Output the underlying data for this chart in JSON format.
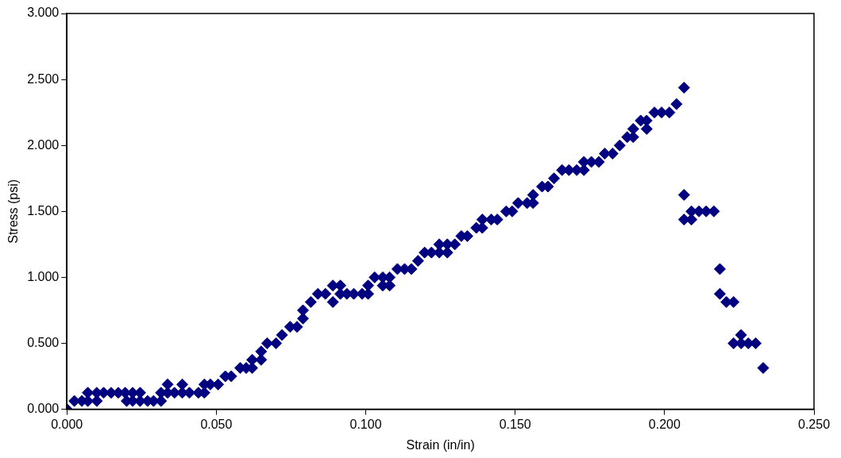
{
  "chart_data": {
    "type": "scatter",
    "xlabel": "Strain (in/in)",
    "ylabel": "Stress (psi)",
    "marker": "diamond",
    "grid": false,
    "legend": false,
    "xlim": [
      0,
      0.25
    ],
    "xticks": [
      {
        "value": 0,
        "label": "0.000"
      },
      {
        "value": 0.05,
        "label": "0.050"
      },
      {
        "value": 0.1,
        "label": "0.100"
      },
      {
        "value": 0.15,
        "label": "0.150"
      },
      {
        "value": 0.2,
        "label": "0.200"
      },
      {
        "value": 0.25,
        "label": "0.250"
      }
    ],
    "ylim": [
      0,
      3
    ],
    "yticks": [
      {
        "value": 0,
        "label": "0.000"
      },
      {
        "value": 0.5,
        "label": "0.500"
      },
      {
        "value": 1,
        "label": "1.000"
      },
      {
        "value": 1.5,
        "label": "1.500"
      },
      {
        "value": 2,
        "label": "2.000"
      },
      {
        "value": 2.5,
        "label": "2.500"
      },
      {
        "value": 3,
        "label": "3.000"
      }
    ],
    "series": [
      {
        "color": "#000080",
        "x": [
          0,
          0.0025,
          0.005,
          0.007,
          0.007,
          0.01,
          0.01,
          0.0123,
          0.0148,
          0.0172,
          0.0195,
          0.02,
          0.022,
          0.022,
          0.0245,
          0.0245,
          0.027,
          0.029,
          0.0315,
          0.0315,
          0.0337,
          0.0337,
          0.036,
          0.0386,
          0.0386,
          0.041,
          0.044,
          0.046,
          0.046,
          0.048,
          0.0506,
          0.053,
          0.055,
          0.058,
          0.06,
          0.062,
          0.062,
          0.065,
          0.065,
          0.067,
          0.07,
          0.072,
          0.0747,
          0.077,
          0.079,
          0.079,
          0.0816,
          0.084,
          0.0865,
          0.089,
          0.089,
          0.0915,
          0.0915,
          0.0937,
          0.096,
          0.0988,
          0.1008,
          0.1008,
          0.103,
          0.1057,
          0.1057,
          0.108,
          0.108,
          0.1106,
          0.113,
          0.1153,
          0.1175,
          0.1197,
          0.122,
          0.1246,
          0.1246,
          0.1273,
          0.1273,
          0.1298,
          0.132,
          0.134,
          0.137,
          0.139,
          0.139,
          0.142,
          0.144,
          0.147,
          0.149,
          0.151,
          0.154,
          0.156,
          0.156,
          0.159,
          0.161,
          0.163,
          0.1657,
          0.168,
          0.1706,
          0.173,
          0.173,
          0.1755,
          0.178,
          0.18,
          0.1826,
          0.185,
          0.1875,
          0.1895,
          0.1895,
          0.192,
          0.194,
          0.194,
          0.1966,
          0.199,
          0.2016,
          0.204,
          0.2065,
          0.2065,
          0.2065,
          0.209,
          0.209,
          0.2115,
          0.2139,
          0.2165,
          0.2185,
          0.2185,
          0.2207,
          0.2231,
          0.2231,
          0.2256,
          0.2256,
          0.228,
          0.2305,
          0.233
        ],
        "values": [
          0,
          0.063,
          0.063,
          0.125,
          0.063,
          0.125,
          0.063,
          0.125,
          0.125,
          0.125,
          0.125,
          0.063,
          0.125,
          0.063,
          0.125,
          0.063,
          0.063,
          0.063,
          0.063,
          0.125,
          0.188,
          0.125,
          0.125,
          0.188,
          0.125,
          0.125,
          0.125,
          0.188,
          0.125,
          0.188,
          0.188,
          0.25,
          0.25,
          0.313,
          0.313,
          0.313,
          0.375,
          0.438,
          0.375,
          0.5,
          0.5,
          0.563,
          0.625,
          0.625,
          0.688,
          0.75,
          0.813,
          0.875,
          0.875,
          0.938,
          0.813,
          0.938,
          0.875,
          0.875,
          0.875,
          0.875,
          0.875,
          0.938,
          1,
          1,
          0.938,
          0.938,
          1,
          1.063,
          1.063,
          1.063,
          1.125,
          1.188,
          1.188,
          1.25,
          1.188,
          1.25,
          1.188,
          1.25,
          1.313,
          1.313,
          1.375,
          1.438,
          1.375,
          1.438,
          1.438,
          1.5,
          1.5,
          1.563,
          1.563,
          1.625,
          1.563,
          1.688,
          1.688,
          1.75,
          1.813,
          1.813,
          1.813,
          1.813,
          1.875,
          1.875,
          1.875,
          1.938,
          1.938,
          2,
          2.063,
          2.063,
          2.125,
          2.188,
          2.188,
          2.125,
          2.25,
          2.25,
          2.25,
          2.313,
          2.438,
          1.625,
          1.438,
          1.438,
          1.5,
          1.5,
          1.5,
          1.5,
          1.063,
          0.875,
          0.813,
          0.813,
          0.5,
          0.563,
          0.5,
          0.5,
          0.5,
          0.313
        ]
      }
    ]
  }
}
